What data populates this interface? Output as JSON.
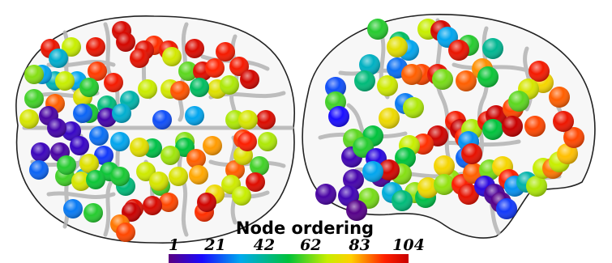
{
  "legend": {
    "title": "Node ordering",
    "ticks": [
      "1",
      "21",
      "42",
      "62",
      "83",
      "104"
    ],
    "min": 1,
    "max": 104,
    "colormap": [
      "#5a0080",
      "#1a0aff",
      "#00aaee",
      "#00c23a",
      "#c6ee00",
      "#ffd000",
      "#ff2000",
      "#c80000"
    ]
  },
  "views": [
    {
      "name": "axial",
      "nodes": [
        {
          "order": 100
        },
        {
          "order": 101
        },
        {
          "order": 95
        },
        {
          "order": 60
        },
        {
          "order": 88
        },
        {
          "order": 97
        },
        {
          "order": 96
        },
        {
          "order": 93
        },
        {
          "order": 63
        },
        {
          "order": 99
        },
        {
          "order": 52
        },
        {
          "order": 98
        },
        {
          "order": 89
        },
        {
          "order": 92
        },
        {
          "order": 92
        },
        {
          "order": 66
        },
        {
          "order": 58
        },
        {
          "order": 42
        },
        {
          "order": 61
        },
        {
          "order": 63
        },
        {
          "order": 85
        },
        {
          "order": 101
        },
        {
          "order": 30
        },
        {
          "order": 35
        },
        {
          "order": 60
        },
        {
          "order": 50
        },
        {
          "order": 92
        },
        {
          "order": 84
        },
        {
          "order": 66
        },
        {
          "order": 47
        },
        {
          "order": 40
        },
        {
          "order": 95
        },
        {
          "order": 30
        },
        {
          "order": 55
        },
        {
          "order": 33
        },
        {
          "order": 87
        },
        {
          "order": 64
        },
        {
          "order": 5
        },
        {
          "order": 9
        },
        {
          "order": 6
        },
        {
          "order": 6
        },
        {
          "order": 36
        },
        {
          "order": 24
        },
        {
          "order": 30
        },
        {
          "order": 48
        },
        {
          "order": 33
        },
        {
          "order": 22
        },
        {
          "order": 58
        },
        {
          "order": 99
        },
        {
          "order": 64
        },
        {
          "order": 8
        },
        {
          "order": 5
        },
        {
          "order": 9
        },
        {
          "order": 30
        },
        {
          "order": 25
        },
        {
          "order": 44
        },
        {
          "order": 67
        },
        {
          "order": 55
        },
        {
          "order": 45
        },
        {
          "order": 79
        },
        {
          "order": 87
        },
        {
          "order": 58
        },
        {
          "order": 24
        },
        {
          "order": 50
        },
        {
          "order": 48
        },
        {
          "order": 30
        },
        {
          "order": 20
        },
        {
          "order": 57
        },
        {
          "order": 84
        },
        {
          "order": 65
        },
        {
          "order": 62
        },
        {
          "order": 50
        },
        {
          "order": 40
        },
        {
          "order": 46
        },
        {
          "order": 66
        },
        {
          "order": 47
        },
        {
          "order": 64
        },
        {
          "order": 26
        },
        {
          "order": 97
        },
        {
          "order": 104
        },
        {
          "order": 86
        },
        {
          "order": 48
        },
        {
          "order": 82
        },
        {
          "order": 86
        },
        {
          "order": 100
        },
        {
          "order": 88
        },
        {
          "order": 70
        },
        {
          "order": 84
        },
        {
          "order": 62
        },
        {
          "order": 60
        },
        {
          "order": 66
        },
        {
          "order": 50
        },
        {
          "order": 98
        },
        {
          "order": 64
        },
        {
          "order": 78
        },
        {
          "order": 102
        },
        {
          "order": 46
        },
        {
          "order": 90
        }
      ]
    },
    {
      "name": "sagittal",
      "nodes": [
        {
          "order": 48
        },
        {
          "order": 42
        },
        {
          "order": 60
        },
        {
          "order": 101
        },
        {
          "order": 30
        },
        {
          "order": 48
        },
        {
          "order": 95
        },
        {
          "order": 38
        },
        {
          "order": 30
        },
        {
          "order": 34
        },
        {
          "order": 67
        },
        {
          "order": 25
        },
        {
          "order": 40
        },
        {
          "order": 86
        },
        {
          "order": 96
        },
        {
          "order": 54
        },
        {
          "order": 84
        },
        {
          "order": 26
        },
        {
          "order": 22
        },
        {
          "order": 50
        },
        {
          "order": 62
        },
        {
          "order": 16
        },
        {
          "order": 70
        },
        {
          "order": 58
        },
        {
          "order": 45
        },
        {
          "order": 52
        },
        {
          "order": 7
        },
        {
          "order": 48
        },
        {
          "order": 12
        },
        {
          "order": 6
        },
        {
          "order": 102
        },
        {
          "order": 4
        },
        {
          "order": 54
        },
        {
          "order": 88
        },
        {
          "order": 60
        },
        {
          "order": 45
        },
        {
          "order": 55
        },
        {
          "order": 101
        },
        {
          "order": 92
        },
        {
          "order": 104
        },
        {
          "order": 89
        },
        {
          "order": 58
        },
        {
          "order": 28
        },
        {
          "order": 94
        },
        {
          "order": 24
        },
        {
          "order": 103
        },
        {
          "order": 45
        },
        {
          "order": 86
        },
        {
          "order": 104
        },
        {
          "order": 86
        },
        {
          "order": 56
        },
        {
          "order": 44
        },
        {
          "order": 56
        },
        {
          "order": 72
        },
        {
          "order": 5
        },
        {
          "order": 7
        },
        {
          "order": 2
        },
        {
          "order": 32
        },
        {
          "order": 40
        },
        {
          "order": 30
        },
        {
          "order": 70
        },
        {
          "order": 56
        },
        {
          "order": 90
        },
        {
          "order": 84
        },
        {
          "order": 96
        },
        {
          "order": 54
        },
        {
          "order": 72
        },
        {
          "order": 90
        },
        {
          "order": 12
        },
        {
          "order": 4
        },
        {
          "order": 2
        },
        {
          "order": 20
        },
        {
          "order": 28
        },
        {
          "order": 36
        },
        {
          "order": 58
        },
        {
          "order": 60
        },
        {
          "order": 82
        },
        {
          "order": 60
        },
        {
          "order": 76
        },
        {
          "order": 86
        },
        {
          "order": 94
        },
        {
          "order": 84
        },
        {
          "order": 72
        },
        {
          "order": 92
        },
        {
          "order": 64
        },
        {
          "order": 52
        },
        {
          "order": 96
        },
        {
          "order": 84
        },
        {
          "order": 80
        },
        {
          "order": 46
        }
      ]
    }
  ]
}
